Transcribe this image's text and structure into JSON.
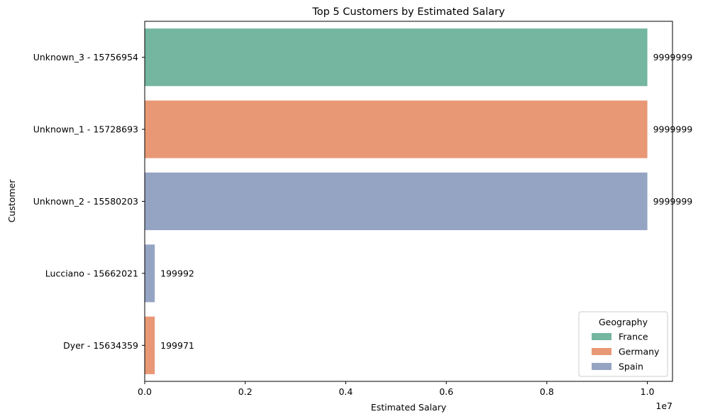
{
  "chart_data": {
    "type": "bar",
    "orientation": "horizontal",
    "title": "Top 5 Customers by Estimated Salary",
    "xlabel": "Estimated Salary",
    "ylabel": "Customer",
    "x_scale_note": "1e7",
    "xlim": [
      0,
      10500000
    ],
    "x_ticks": [
      0,
      2000000,
      4000000,
      6000000,
      8000000,
      10000000
    ],
    "x_tick_labels": [
      "0.0",
      "0.2",
      "0.4",
      "0.6",
      "0.8",
      "1.0"
    ],
    "categories": [
      "Unknown_3 - 15756954",
      "Unknown_1 - 15728693",
      "Unknown_2 - 15580203",
      "Lucciano - 15662021",
      "Dyer - 15634359"
    ],
    "values": [
      9999999,
      9999999,
      9999999,
      199992,
      199971
    ],
    "value_labels": [
      "9999999",
      "9999999",
      "9999999",
      "199992",
      "199971"
    ],
    "geography": [
      "France",
      "Germany",
      "Spain",
      "Spain",
      "Germany"
    ],
    "grid": false,
    "legend": {
      "title": "Geography",
      "placement": "lower-right",
      "entries": [
        {
          "name": "France",
          "color": "#74b6a0"
        },
        {
          "name": "Germany",
          "color": "#e99875"
        },
        {
          "name": "Spain",
          "color": "#95a4c3"
        }
      ]
    }
  }
}
